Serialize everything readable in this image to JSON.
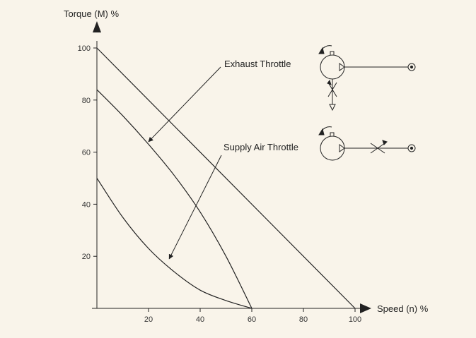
{
  "chart_data": {
    "type": "line",
    "title": "",
    "xlabel": "Speed (n) %",
    "ylabel": "Torque (M) %",
    "xlim": [
      0,
      100
    ],
    "ylim": [
      0,
      100
    ],
    "x_ticks": [
      20,
      40,
      60,
      80,
      100
    ],
    "y_ticks": [
      20,
      40,
      60,
      80,
      100
    ],
    "grid": false,
    "legend": "none",
    "series": [
      {
        "name": "",
        "x": [
          0,
          100
        ],
        "y": [
          100,
          0
        ]
      },
      {
        "name": "",
        "x": [
          0,
          10,
          20,
          30,
          40,
          50,
          60
        ],
        "y": [
          84,
          74,
          63,
          51,
          37,
          20,
          0
        ]
      },
      {
        "name": "",
        "x": [
          0,
          10,
          20,
          30,
          40,
          50,
          60
        ],
        "y": [
          50,
          35,
          23,
          14,
          7,
          3,
          0
        ]
      }
    ],
    "annotations": [
      {
        "text": "Exhaust Throttle",
        "points_to": {
          "x": 20,
          "y": 64
        }
      },
      {
        "text": "Supply Air Throttle",
        "points_to": {
          "x": 28,
          "y": 19
        }
      }
    ],
    "colors": {
      "background": "#f9f4ea",
      "line": "#222222"
    }
  },
  "icons": [
    "exhaust-throttle-diagram-icon",
    "supply-air-throttle-diagram-icon"
  ]
}
